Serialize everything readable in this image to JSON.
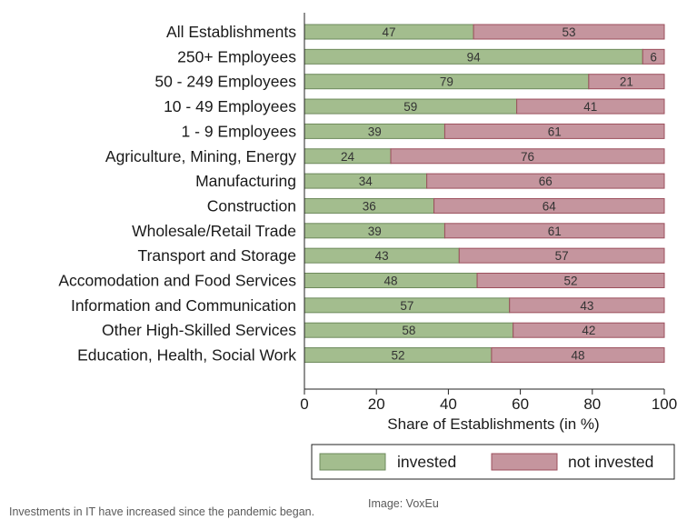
{
  "chart_data": {
    "type": "bar",
    "orientation": "horizontal",
    "stacked": true,
    "categories": [
      "All Establishments",
      "250+ Employees",
      "50 - 249 Employees",
      "10 - 49 Employees",
      "1 - 9 Employees",
      "Agriculture, Mining, Energy",
      "Manufacturing",
      "Construction",
      "Wholesale/Retail Trade",
      "Transport and Storage",
      "Accomodation and Food Services",
      "Information and Communication",
      "Other High-Skilled Services",
      "Education, Health, Social Work"
    ],
    "series": [
      {
        "name": "invested",
        "color": "#a3bd8e",
        "values": [
          47,
          94,
          79,
          59,
          39,
          24,
          34,
          36,
          39,
          43,
          48,
          57,
          58,
          52
        ]
      },
      {
        "name": "not invested",
        "color": "#c5959e",
        "values": [
          53,
          6,
          21,
          41,
          61,
          76,
          66,
          64,
          61,
          57,
          52,
          43,
          42,
          48
        ]
      }
    ],
    "xlabel": "Share of Establishments (in %)",
    "xlim": [
      0,
      100
    ],
    "xticks": [
      0,
      20,
      40,
      60,
      80,
      100
    ],
    "grid": false,
    "legend_position": "bottom"
  },
  "caption": "Investments in IT have increased since the pandemic began.",
  "credit": "Image: VoxEu"
}
